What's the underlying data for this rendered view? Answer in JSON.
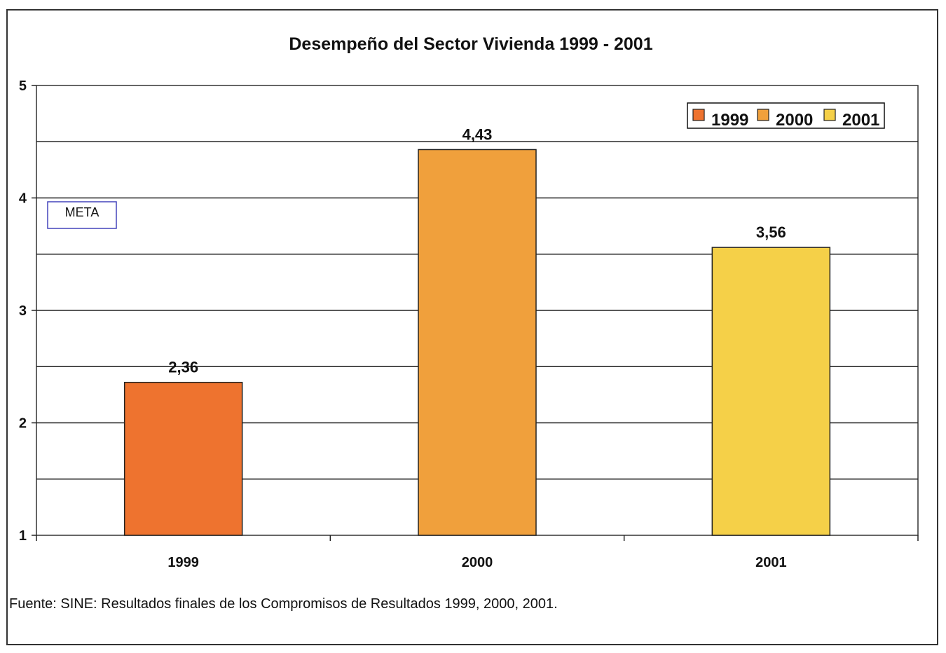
{
  "chart_data": {
    "type": "bar",
    "title": "Desempeño del Sector Vivienda 1999  - 2001",
    "categories": [
      "1999",
      "2000",
      "2001"
    ],
    "series": [
      {
        "name": "1999",
        "values": [
          2.36,
          null,
          null
        ],
        "labels": [
          "2,36",
          "",
          ""
        ]
      },
      {
        "name": "2000",
        "values": [
          null,
          4.43,
          null
        ],
        "labels": [
          "",
          "4,43",
          ""
        ]
      },
      {
        "name": "2001",
        "values": [
          null,
          null,
          3.56
        ],
        "labels": [
          "",
          "",
          "3,56"
        ]
      }
    ],
    "values": [
      2.36,
      4.43,
      3.56
    ],
    "value_labels": [
      "2,36",
      "4,43",
      "3,56"
    ],
    "colors": [
      "#EE732F",
      "#F0A03C",
      "#F5D048"
    ],
    "ylim": [
      1,
      5
    ],
    "yticks": [
      1,
      2,
      3,
      4,
      5
    ],
    "ytick_labels": [
      "1",
      "2",
      "3",
      "4",
      "5"
    ],
    "gridline_step": 0.5,
    "xlabel": "",
    "ylabel": "",
    "legend": {
      "placement": "top-right",
      "entries": [
        "1999",
        "2000",
        "2001"
      ]
    },
    "annotation": "META",
    "source": "Fuente: SINE: Resultados finales de los Compromisos de Resultados 1999, 2000, 2001."
  }
}
